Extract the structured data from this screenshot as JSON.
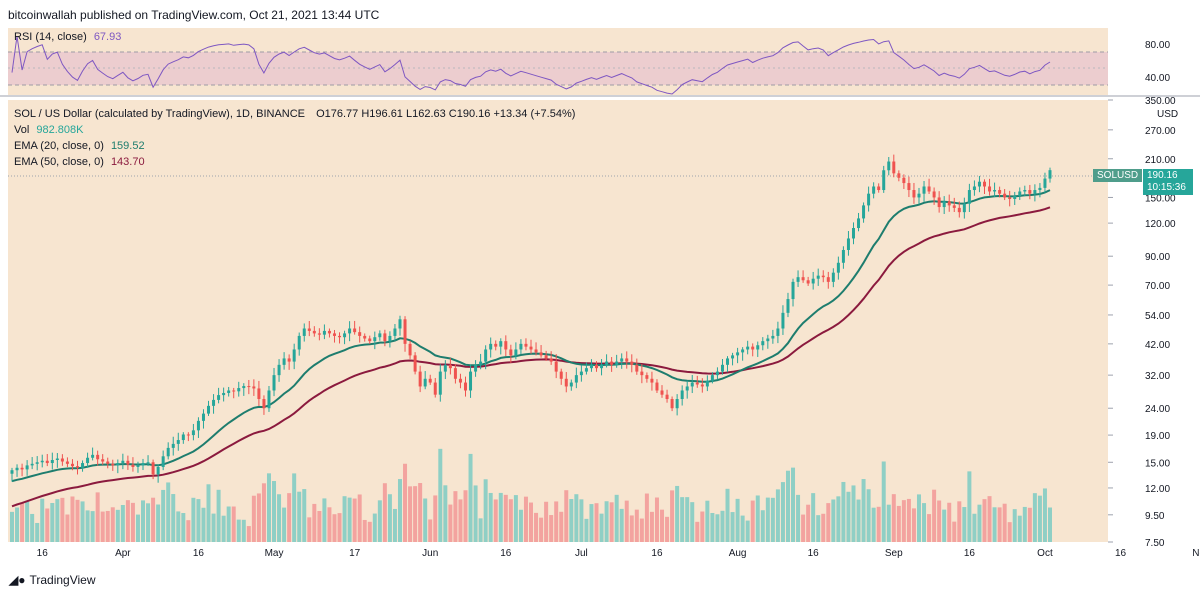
{
  "header": {
    "text": "bitcoinwallah published on TradingView.com, Oct 21, 2021 13:44 UTC"
  },
  "rsi": {
    "label": "RSI (14, close)",
    "value": "67.93",
    "ticks": [
      "80.00",
      "40.00"
    ],
    "color": "#7e57c2"
  },
  "main_legend": {
    "title": "SOL / US Dollar (calculated by TradingView), 1D, BINANCE",
    "ohlc": "O176.77  H196.61  L162.63  C190.16  +13.34 (+7.54%)",
    "vol_label": "Vol",
    "vol_value": "982.808K",
    "ema20_label": "EMA (20, close, 0)",
    "ema20_value": "159.52",
    "ema50_label": "EMA (50, close, 0)",
    "ema50_value": "143.70"
  },
  "price_tag": {
    "symbol": "SOLUSD",
    "price": "190.16",
    "countdown": "10:15:36"
  },
  "currency": "USD",
  "footer": {
    "brand": "TradingView"
  },
  "colors": {
    "up": "#26a69a",
    "down": "#ef5350",
    "ema20": "#1e7d6e",
    "ema50": "#8b1a3e",
    "rsi": "#7e57c2",
    "bg": "#f7e5d0"
  },
  "chart_data": {
    "type": "candlestick",
    "y_scale": "log",
    "y_ticks": [
      "350.00",
      "270.00",
      "210.00",
      "150.00",
      "120.00",
      "90.00",
      "70.00",
      "54.00",
      "42.00",
      "32.00",
      "24.00",
      "19.00",
      "15.00",
      "12.00",
      "9.50",
      "7.50"
    ],
    "x_ticks": [
      "16",
      "Apr",
      "16",
      "May",
      "17",
      "Jun",
      "16",
      "Jul",
      "16",
      "Aug",
      "16",
      "Sep",
      "16",
      "Oct",
      "16",
      "Nov"
    ],
    "closes": [
      14.0,
      14.3,
      14.1,
      14.6,
      14.8,
      15.0,
      15.2,
      14.9,
      15.3,
      15.5,
      15.1,
      14.8,
      14.5,
      14.3,
      14.9,
      15.6,
      16.0,
      15.4,
      15.1,
      14.8,
      14.6,
      14.9,
      15.2,
      14.7,
      14.4,
      14.6,
      14.9,
      15.0,
      13.5,
      14.4,
      15.8,
      17.0,
      17.6,
      18.2,
      19.1,
      19.0,
      19.8,
      21.5,
      22.9,
      24.5,
      25.8,
      26.9,
      27.4,
      28.0,
      27.8,
      28.6,
      29.1,
      29.0,
      28.5,
      26.0,
      24.0,
      28.0,
      32.0,
      35.0,
      37.0,
      36.0,
      40.0,
      45.0,
      48.0,
      47.0,
      46.0,
      45.5,
      47.0,
      46.0,
      45.0,
      44.5,
      46.0,
      48.0,
      46.5,
      45.0,
      44.0,
      43.0,
      44.5,
      46.0,
      43.0,
      45.0,
      48.0,
      52.0,
      42.0,
      38.0,
      33.0,
      29.0,
      31.0,
      30.0,
      27.0,
      33.0,
      35.0,
      34.0,
      31.0,
      30.0,
      28.0,
      33.0,
      35.0,
      36.0,
      40.0,
      42.0,
      41.0,
      43.0,
      40.0,
      38.0,
      40.0,
      42.0,
      41.0,
      40.0,
      39.0,
      38.0,
      37.0,
      36.0,
      33.0,
      31.0,
      29.0,
      30.0,
      32.0,
      33.0,
      34.0,
      35.0,
      34.0,
      35.0,
      36.0,
      35.0,
      36.0,
      37.0,
      36.0,
      35.0,
      33.0,
      32.0,
      31.0,
      30.0,
      28.0,
      27.0,
      26.0,
      24.0,
      26.0,
      28.0,
      29.0,
      30.0,
      29.5,
      29.0,
      30.5,
      32.0,
      33.0,
      35.0,
      37.0,
      38.0,
      39.0,
      40.0,
      41.0,
      40.0,
      41.5,
      43.0,
      44.0,
      45.0,
      48.0,
      55.0,
      62.0,
      72.0,
      75.0,
      73.0,
      71.0,
      74.0,
      76.0,
      75.0,
      72.0,
      78.0,
      85.0,
      95.0,
      105.0,
      115.0,
      125.0,
      140.0,
      155.0,
      165.0,
      160.0,
      190.0,
      205.0,
      185.0,
      178.0,
      170.0,
      160.0,
      150.0,
      155.0,
      165.0,
      158.0,
      150.0,
      138.0,
      145.0,
      140.0,
      137.0,
      132.0,
      142.0,
      160.0,
      165.0,
      172.0,
      165.0,
      158.0,
      160.0,
      155.0,
      150.0,
      148.0,
      152.0,
      158.0,
      160.0,
      155.0,
      160.0,
      163.0,
      176.77,
      190.16
    ],
    "ema20_last": 159.52,
    "ema50_last": 143.7,
    "rsi_last": 67.93
  }
}
